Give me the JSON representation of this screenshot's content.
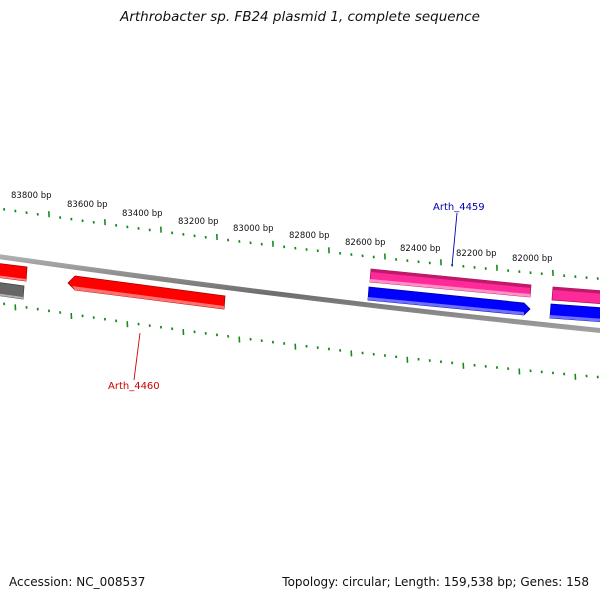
{
  "title": "Arthrobacter sp. FB24 plasmid 1, complete sequence",
  "footer": {
    "accession": "Accession: NC_008537",
    "summary": "Topology: circular; Length: 159,538 bp; Genes: 158"
  },
  "scale_labels": [
    "83800 bp",
    "83600 bp",
    "83400 bp",
    "83200 bp",
    "83000 bp",
    "82800 bp",
    "82600 bp",
    "82400 bp",
    "82200 bp",
    "82000 bp"
  ],
  "gene_labels": {
    "upper": "Arth_4459",
    "lower": "Arth_4460"
  },
  "colors": {
    "tick": "#1a8a1a",
    "backbone": "#808080",
    "red_gene": "#ff0000",
    "pink_gene": "#ff2a9a",
    "blue_gene": "#0000ff",
    "gray_gene": "#707070",
    "upper_label": "#0000b0",
    "lower_label": "#cc0000"
  }
}
